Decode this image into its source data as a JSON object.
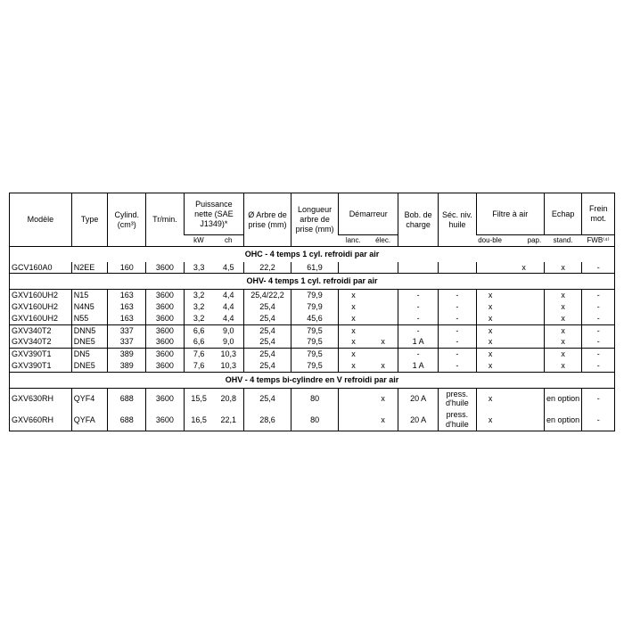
{
  "table": {
    "background_color": "#ffffff",
    "text_color": "#000000",
    "border_color": "#000000",
    "font_size_header": 9,
    "font_size_sub": 8,
    "font_size_body": 9,
    "columns": {
      "modele": "Modèle",
      "type": "Type",
      "cylind": "Cylind. (cm³)",
      "trmin": "Tr/min.",
      "puissance": "Puissance nette (SAE J1349)*",
      "puissance_kw": "kW",
      "puissance_ch": "ch",
      "arbre_dia": "Ø Arbre de prise (mm)",
      "arbre_len": "Longueur arbre de prise (mm)",
      "demarreur": "Démarreur",
      "dem_lanc": "lanc.",
      "dem_elec": "élec.",
      "bob": "Bob. de charge",
      "sec": "Séc. niv. huile",
      "filtre": "Filtre à air",
      "filtre_dou": "dou-ble",
      "filtre_pap": "pap.",
      "echap": "Echap",
      "echap_stand": "stand.",
      "frein": "Frein mot.",
      "frein_fwb": "FWB⁽⁴⁾"
    },
    "sections": [
      {
        "title": "OHC - 4 temps 1 cyl. refroidi par air",
        "rows": [
          {
            "modele": "GCV160A0",
            "type": "N2EE",
            "cyl": "160",
            "tr": "3600",
            "kw": "3,3",
            "ch": "4,5",
            "dia": "22,2",
            "len": "61,9",
            "lanc": "",
            "elec": "",
            "bob": "",
            "sec": "",
            "dou": "",
            "pap": "x",
            "stand": "x",
            "fwb": "-"
          }
        ]
      },
      {
        "title": "OHV- 4 temps 1 cyl. refroidi par air",
        "rows": [
          {
            "modele": "GXV160UH2",
            "type": "N15",
            "cyl": "163",
            "tr": "3600",
            "kw": "3,2",
            "ch": "4,4",
            "dia": "25,4/22,2",
            "len": "79,9",
            "lanc": "x",
            "elec": "",
            "bob": "-",
            "sec": "-",
            "dou": "x",
            "pap": "",
            "stand": "x",
            "fwb": "-",
            "group_top": true
          },
          {
            "modele": "GXV160UH2",
            "type": "N4N5",
            "cyl": "163",
            "tr": "3600",
            "kw": "3,2",
            "ch": "4,4",
            "dia": "25,4",
            "len": "79,9",
            "lanc": "x",
            "elec": "",
            "bob": "-",
            "sec": "-",
            "dou": "x",
            "pap": "",
            "stand": "x",
            "fwb": "-"
          },
          {
            "modele": "GXV160UH2",
            "type": "N55",
            "cyl": "163",
            "tr": "3600",
            "kw": "3,2",
            "ch": "4,4",
            "dia": "25,4",
            "len": "45,6",
            "lanc": "x",
            "elec": "",
            "bob": "-",
            "sec": "-",
            "dou": "x",
            "pap": "",
            "stand": "x",
            "fwb": "-"
          },
          {
            "modele": "GXV340T2",
            "type": "DNN5",
            "cyl": "337",
            "tr": "3600",
            "kw": "6,6",
            "ch": "9,0",
            "dia": "25,4",
            "len": "79,5",
            "lanc": "x",
            "elec": "",
            "bob": "-",
            "sec": "-",
            "dou": "x",
            "pap": "",
            "stand": "x",
            "fwb": "-",
            "group_top": true
          },
          {
            "modele": "GXV340T2",
            "type": "DNE5",
            "cyl": "337",
            "tr": "3600",
            "kw": "6,6",
            "ch": "9,0",
            "dia": "25,4",
            "len": "79,5",
            "lanc": "x",
            "elec": "x",
            "bob": "1 A",
            "sec": "-",
            "dou": "x",
            "pap": "",
            "stand": "x",
            "fwb": "-"
          },
          {
            "modele": "GXV390T1",
            "type": "DN5",
            "cyl": "389",
            "tr": "3600",
            "kw": "7,6",
            "ch": "10,3",
            "dia": "25,4",
            "len": "79,5",
            "lanc": "x",
            "elec": "",
            "bob": "-",
            "sec": "-",
            "dou": "x",
            "pap": "",
            "stand": "x",
            "fwb": "-",
            "group_top": true
          },
          {
            "modele": "GXV390T1",
            "type": "DNE5",
            "cyl": "389",
            "tr": "3600",
            "kw": "7,6",
            "ch": "10,3",
            "dia": "25,4",
            "len": "79,5",
            "lanc": "x",
            "elec": "x",
            "bob": "1 A",
            "sec": "-",
            "dou": "x",
            "pap": "",
            "stand": "x",
            "fwb": "-"
          }
        ]
      },
      {
        "title": "OHV - 4 temps bi-cylindre en V refroidi par air",
        "rows": [
          {
            "modele": "GXV630RH",
            "type": "QYF4",
            "cyl": "688",
            "tr": "3600",
            "kw": "15,5",
            "ch": "20,8",
            "dia": "25,4",
            "len": "80",
            "lanc": "",
            "elec": "x",
            "bob": "20 A",
            "sec": "press. d'huile",
            "dou": "x",
            "pap": "",
            "stand": "en option",
            "fwb": "-",
            "group_top": true
          },
          {
            "modele": "GXV660RH",
            "type": "QYFA",
            "cyl": "688",
            "tr": "3600",
            "kw": "16,5",
            "ch": "22,1",
            "dia": "28,6",
            "len": "80",
            "lanc": "",
            "elec": "x",
            "bob": "20 A",
            "sec": "press. d'huile",
            "dou": "x",
            "pap": "",
            "stand": "en option",
            "fwb": "-"
          }
        ]
      }
    ]
  }
}
